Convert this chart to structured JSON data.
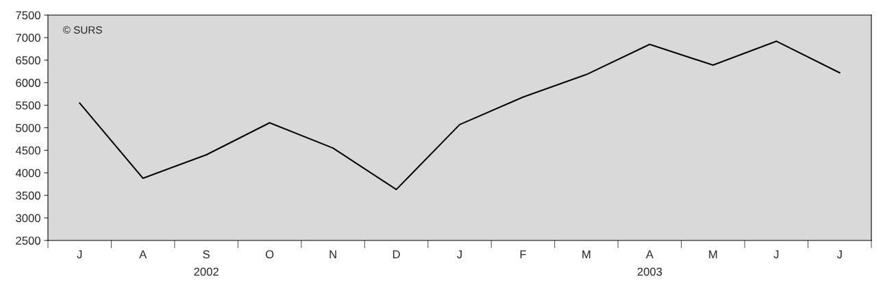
{
  "chart_data": {
    "type": "line",
    "categories": [
      "J",
      "A",
      "S",
      "O",
      "N",
      "D",
      "J",
      "F",
      "M",
      "A",
      "M",
      "J",
      "J"
    ],
    "series": [
      {
        "color": "#000000",
        "values": [
          5550,
          3880,
          4400,
          5110,
          4550,
          3630,
          5070,
          5680,
          6180,
          6850,
          6390,
          6920,
          6220
        ]
      }
    ],
    "ylim": [
      2500,
      7500
    ],
    "yticks": [
      2500,
      3000,
      3500,
      4000,
      4500,
      5000,
      5500,
      6000,
      6500,
      7000,
      7500
    ],
    "grid": false,
    "legend": false,
    "marker": "none",
    "line_style": "solid",
    "annotations": [
      "© SURS",
      "2002",
      "2003"
    ]
  }
}
